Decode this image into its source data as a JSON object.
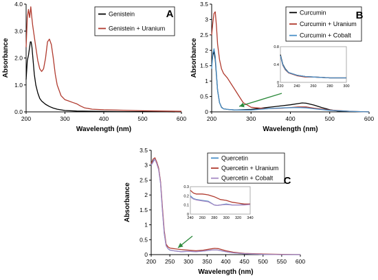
{
  "chart_data": [
    {
      "type": "line",
      "panel_label": "A",
      "xlabel": "Wavelength (nm)",
      "ylabel": "Absorbance",
      "xlim": [
        200,
        600
      ],
      "ylim": [
        0,
        4.0
      ],
      "xticks": [
        "200",
        "300",
        "400",
        "500",
        "600"
      ],
      "yticks": [
        "0.0",
        "1.0",
        "2.0",
        "3.0",
        "4.0"
      ],
      "legend_position": "top-right",
      "series": [
        {
          "name": "Genistein",
          "color": "#000000",
          "x": [
            200,
            203,
            206,
            209,
            211,
            213,
            215,
            218,
            221,
            225,
            230,
            235,
            240,
            250,
            260,
            270,
            280,
            300,
            330,
            380,
            450,
            520,
            600
          ],
          "y": [
            1.2,
            1.9,
            2.1,
            2.4,
            2.6,
            2.6,
            2.4,
            1.9,
            1.4,
            1.0,
            0.7,
            0.5,
            0.4,
            0.28,
            0.2,
            0.14,
            0.1,
            0.05,
            0.03,
            0.02,
            0.01,
            0.01,
            0.0
          ]
        },
        {
          "name": "Genistein + Uranium",
          "color": "#b03a2e",
          "x": [
            200,
            203,
            206,
            209,
            212,
            214,
            217,
            220,
            225,
            230,
            235,
            240,
            245,
            250,
            255,
            260,
            265,
            270,
            275,
            280,
            290,
            300,
            310,
            320,
            330,
            340,
            350,
            370,
            400,
            450,
            500,
            550,
            600
          ],
          "y": [
            2.4,
            3.5,
            3.8,
            3.5,
            3.9,
            3.6,
            3.2,
            2.9,
            2.4,
            1.9,
            1.6,
            1.5,
            1.6,
            2.0,
            2.6,
            2.7,
            2.5,
            2.0,
            1.4,
            1.0,
            0.6,
            0.45,
            0.4,
            0.35,
            0.3,
            0.22,
            0.15,
            0.1,
            0.08,
            0.06,
            0.04,
            0.03,
            0.02
          ]
        }
      ]
    },
    {
      "type": "line",
      "panel_label": "B",
      "xlabel": "Wavelength (nm)",
      "ylabel": "Absorbance",
      "xlim": [
        200,
        600
      ],
      "ylim": [
        0,
        3.5
      ],
      "xticks": [
        "200",
        "300",
        "400",
        "500",
        "600"
      ],
      "yticks": [
        "0",
        "0.5",
        "1",
        "1.5",
        "2",
        "2.5",
        "3",
        "3.5"
      ],
      "legend_position": "top-right",
      "series": [
        {
          "name": "Curcumin",
          "color": "#000000",
          "x": [
            200,
            203,
            206,
            209,
            212,
            215,
            220,
            225,
            230,
            240,
            260,
            300,
            340,
            360,
            380,
            400,
            420,
            430,
            440,
            460,
            480,
            500,
            520,
            540,
            560,
            600
          ],
          "y": [
            1.5,
            1.85,
            1.95,
            1.7,
            1.2,
            0.7,
            0.3,
            0.15,
            0.1,
            0.08,
            0.06,
            0.08,
            0.14,
            0.17,
            0.2,
            0.23,
            0.27,
            0.29,
            0.28,
            0.22,
            0.14,
            0.07,
            0.03,
            0.02,
            0.01,
            0.0
          ]
        },
        {
          "name": "Curcumin + Uranium",
          "color": "#b03a2e",
          "x": [
            200,
            203,
            206,
            209,
            212,
            215,
            220,
            225,
            230,
            240,
            250,
            260,
            270,
            280,
            300,
            340,
            380,
            420,
            440,
            460,
            500,
            550,
            600
          ],
          "y": [
            2.5,
            2.9,
            3.2,
            3.25,
            2.8,
            2.2,
            1.7,
            1.4,
            1.25,
            1.1,
            0.9,
            0.7,
            0.5,
            0.3,
            0.15,
            0.1,
            0.12,
            0.16,
            0.16,
            0.12,
            0.06,
            0.02,
            0.0
          ]
        },
        {
          "name": "Curcumin + Cobalt",
          "color": "#4a90c8",
          "x": [
            200,
            203,
            206,
            209,
            212,
            215,
            220,
            225,
            230,
            240,
            260,
            300,
            340,
            380,
            420,
            440,
            460,
            500,
            550,
            600
          ],
          "y": [
            1.4,
            1.9,
            2.05,
            1.8,
            1.25,
            0.7,
            0.3,
            0.14,
            0.1,
            0.08,
            0.06,
            0.06,
            0.1,
            0.13,
            0.14,
            0.13,
            0.1,
            0.05,
            0.02,
            0.0
          ]
        }
      ],
      "inset": {
        "xlim": [
          220,
          300
        ],
        "ylim": [
          0,
          0.8
        ],
        "xticks": [
          "220",
          "240",
          "260",
          "280",
          "300"
        ],
        "yticks": [
          "0",
          "0.4",
          "0.8"
        ],
        "series": [
          {
            "name": "Curcumin",
            "color": "#000000",
            "x": [
              220,
              223,
              226,
              230,
              240,
              250,
              260,
              270,
              280,
              290,
              300
            ],
            "y": [
              0.62,
              0.4,
              0.3,
              0.22,
              0.16,
              0.13,
              0.12,
              0.11,
              0.1,
              0.1,
              0.1
            ]
          },
          {
            "name": "Curcumin + Uranium",
            "color": "#b03a2e",
            "x": [
              220,
              223,
              226,
              230,
              240,
              250,
              260,
              270,
              280,
              290,
              300
            ],
            "y": [
              0.6,
              0.38,
              0.28,
              0.21,
              0.15,
              0.12,
              0.12,
              0.11,
              0.1,
              0.1,
              0.1
            ]
          },
          {
            "name": "Curcumin + Cobalt",
            "color": "#4a90c8",
            "x": [
              220,
              223,
              226,
              230,
              240,
              250,
              260,
              270,
              280,
              290,
              300
            ],
            "y": [
              0.6,
              0.39,
              0.29,
              0.22,
              0.16,
              0.13,
              0.12,
              0.11,
              0.1,
              0.1,
              0.1
            ]
          }
        ]
      }
    },
    {
      "type": "line",
      "panel_label": "C",
      "xlabel": "Wavelength (nm)",
      "ylabel": "Absorbance",
      "xlim": [
        200,
        600
      ],
      "ylim": [
        0,
        3.5
      ],
      "xticks": [
        "200",
        "250",
        "300",
        "350",
        "400",
        "450",
        "500",
        "550",
        "600"
      ],
      "yticks": [
        "0",
        "0.5",
        "1",
        "1.5",
        "2",
        "2.5",
        "3",
        "3.5"
      ],
      "legend_position": "top-right",
      "series": [
        {
          "name": "Quercetin",
          "color": "#4a90c8",
          "x": [
            200,
            205,
            210,
            215,
            220,
            225,
            230,
            235,
            240,
            245,
            250,
            260,
            280,
            300,
            320,
            340,
            360,
            370,
            380,
            400,
            420,
            450,
            500,
            550,
            600
          ],
          "y": [
            3.0,
            3.15,
            3.2,
            3.1,
            2.9,
            2.4,
            1.5,
            0.7,
            0.3,
            0.2,
            0.15,
            0.13,
            0.1,
            0.11,
            0.1,
            0.12,
            0.15,
            0.16,
            0.15,
            0.1,
            0.06,
            0.03,
            0.01,
            0.0,
            0.0
          ]
        },
        {
          "name": "Quercetin + Uranium",
          "color": "#b03a2e",
          "x": [
            200,
            205,
            210,
            215,
            220,
            225,
            230,
            235,
            240,
            245,
            250,
            260,
            280,
            300,
            320,
            340,
            360,
            370,
            380,
            400,
            420,
            450,
            500,
            550,
            600
          ],
          "y": [
            3.05,
            3.2,
            3.25,
            3.1,
            2.9,
            2.45,
            1.6,
            0.8,
            0.35,
            0.26,
            0.22,
            0.2,
            0.17,
            0.15,
            0.13,
            0.15,
            0.19,
            0.21,
            0.2,
            0.13,
            0.08,
            0.04,
            0.02,
            0.01,
            0.0
          ]
        },
        {
          "name": "Quercetin + Cobalt",
          "color": "#a589c4",
          "x": [
            200,
            205,
            210,
            215,
            220,
            225,
            230,
            235,
            240,
            245,
            250,
            260,
            280,
            300,
            320,
            340,
            360,
            370,
            380,
            400,
            420,
            450,
            500,
            550,
            600
          ],
          "y": [
            3.0,
            3.1,
            3.2,
            3.05,
            2.85,
            2.4,
            1.5,
            0.72,
            0.3,
            0.2,
            0.16,
            0.13,
            0.1,
            0.11,
            0.1,
            0.12,
            0.15,
            0.16,
            0.15,
            0.1,
            0.06,
            0.03,
            0.01,
            0.0,
            0.0
          ]
        }
      ],
      "inset": {
        "xlim": [
          240,
          340
        ],
        "ylim": [
          0,
          0.3
        ],
        "xticks": [
          "240",
          "260",
          "280",
          "300",
          "320",
          "340"
        ],
        "yticks": [
          "0",
          "0.1",
          "0.2",
          "0.3"
        ],
        "series": [
          {
            "name": "Quercetin",
            "color": "#4a90c8",
            "x": [
              240,
              245,
              250,
              260,
              270,
              280,
              285,
              290,
              300,
              310,
              320,
              330,
              340
            ],
            "y": [
              0.2,
              0.17,
              0.16,
              0.15,
              0.14,
              0.1,
              0.095,
              0.1,
              0.11,
              0.1,
              0.1,
              0.105,
              0.11
            ]
          },
          {
            "name": "Quercetin + Uranium",
            "color": "#b03a2e",
            "x": [
              240,
              245,
              250,
              260,
              270,
              280,
              290,
              300,
              310,
              320,
              330,
              340
            ],
            "y": [
              0.26,
              0.23,
              0.22,
              0.22,
              0.21,
              0.19,
              0.16,
              0.15,
              0.13,
              0.12,
              0.11,
              0.11
            ]
          },
          {
            "name": "Quercetin + Cobalt",
            "color": "#a589c4",
            "x": [
              240,
              245,
              250,
              260,
              270,
              280,
              285,
              290,
              300,
              310,
              320,
              330,
              340
            ],
            "y": [
              0.19,
              0.165,
              0.155,
              0.145,
              0.135,
              0.1,
              0.095,
              0.1,
              0.105,
              0.1,
              0.1,
              0.1,
              0.105
            ]
          }
        ]
      }
    }
  ]
}
